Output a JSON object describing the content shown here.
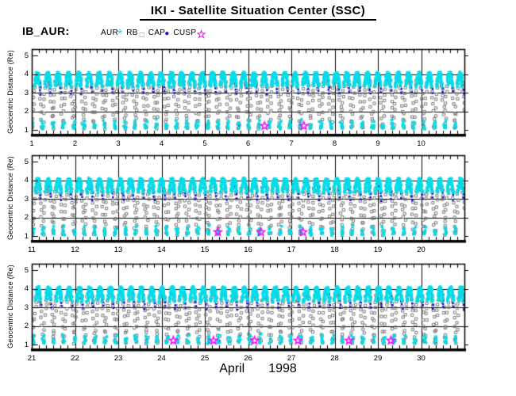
{
  "title": "IKI - Satellite Situation Center (SSC)",
  "satellite_label": "IB_AUR:",
  "legend": {
    "items": [
      {
        "label": "AUR",
        "marker": "asterisk",
        "glyph": "*",
        "color": "#00dde8"
      },
      {
        "label": "RB",
        "marker": "open-square",
        "glyph": "□",
        "color": "#7a7a7a"
      },
      {
        "label": "CAP",
        "marker": "filled-circle",
        "glyph": "●",
        "color": "#1414cc"
      },
      {
        "label": "CUSP",
        "marker": "open-star",
        "glyph": "☆",
        "color": "#ff00ff"
      }
    ]
  },
  "chart_data": {
    "type": "scatter",
    "title": "IKI - Satellite Situation Center (SSC)",
    "satellite": "IB_AUR",
    "ylabel": "Geocentric Distance (Re)",
    "month": "April",
    "year": "1998",
    "ylim": [
      0.75,
      5.35
    ],
    "y_tick_labels": [
      "1",
      "2",
      "3",
      "4",
      "5"
    ],
    "y_gridlines": [
      2,
      3,
      4
    ],
    "minor_ticks_per_day": 6,
    "grid": true,
    "panels": [
      {
        "day_start": 1,
        "day_end": 11,
        "tick_labels": [
          "1",
          "2",
          "3",
          "4",
          "5",
          "6",
          "7",
          "8",
          "9",
          "10"
        ]
      },
      {
        "day_start": 11,
        "day_end": 21,
        "tick_labels": [
          "11",
          "12",
          "13",
          "14",
          "15",
          "16",
          "17",
          "18",
          "19",
          "20"
        ]
      },
      {
        "day_start": 21,
        "day_end": 31,
        "tick_labels": [
          "21",
          "22",
          "23",
          "24",
          "25",
          "26",
          "27",
          "28",
          "29",
          "30"
        ]
      }
    ],
    "orbit": {
      "period_hours": 5.72,
      "perigee_re": 1.1,
      "apogee_re": 4.06,
      "phase_offset": 0.76
    },
    "series": [
      {
        "name": "AUR",
        "color": "#00dde8",
        "marker": "asterisk",
        "radial_ranges": [
          [
            3.33,
            4.06
          ],
          [
            1.0,
            1.52
          ]
        ]
      },
      {
        "name": "RB",
        "color": "#7a7a7a",
        "marker": "open-square",
        "radial_ranges": [
          [
            1.05,
            3.68
          ]
        ]
      },
      {
        "name": "CAP",
        "color": "#1414cc",
        "marker": "dot",
        "radial_ranges": [
          [
            2.92,
            4.06
          ]
        ],
        "leg": "descending"
      },
      {
        "name": "CUSP",
        "color": "#ff00ff",
        "marker": "open-star",
        "r": 1.22,
        "event_days": [
          6.38,
          7.29,
          15.3,
          16.3,
          17.27,
          24.27,
          25.2,
          26.15,
          27.15,
          28.33,
          29.3
        ]
      }
    ]
  }
}
